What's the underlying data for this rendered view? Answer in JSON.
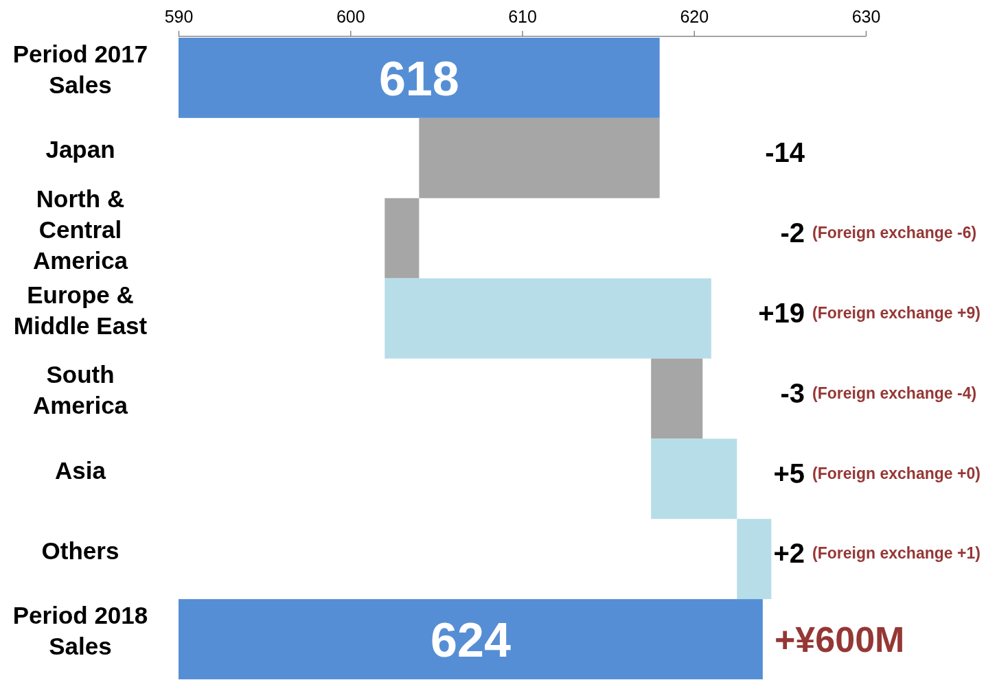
{
  "chart_data": {
    "type": "bar",
    "orientation": "horizontal",
    "categories": [
      "Period 2017 Sales",
      "Japan",
      "North & Central America",
      "Europe & Middle East",
      "South America",
      "Asia",
      "Others",
      "Period 2018 Sales"
    ],
    "values": [
      618,
      -14,
      -2,
      19,
      -3,
      5,
      2,
      624
    ],
    "base": [
      null,
      618,
      604,
      602,
      620.5,
      617.5,
      622.5,
      null
    ],
    "colors": [
      "#558ed5",
      "#a6a6a6",
      "#a6a6a6",
      "#b7dde8",
      "#a6a6a6",
      "#b7dde8",
      "#b7dde8",
      "#558ed5"
    ],
    "value_labels": [
      "618",
      null,
      null,
      null,
      null,
      null,
      null,
      "624"
    ],
    "xlim": [
      590,
      630
    ],
    "xticks": [
      590,
      600,
      610,
      620,
      630
    ],
    "annotations": [
      "-14",
      "-2 (Foreign exchange -6)",
      "+19 (Foreign exchange +9)",
      "-3 (Foreign exchange -4)",
      "+5 (Foreign exchange +0)",
      "+2 (Foreign exchange +1)",
      "+¥600M"
    ]
  }
}
